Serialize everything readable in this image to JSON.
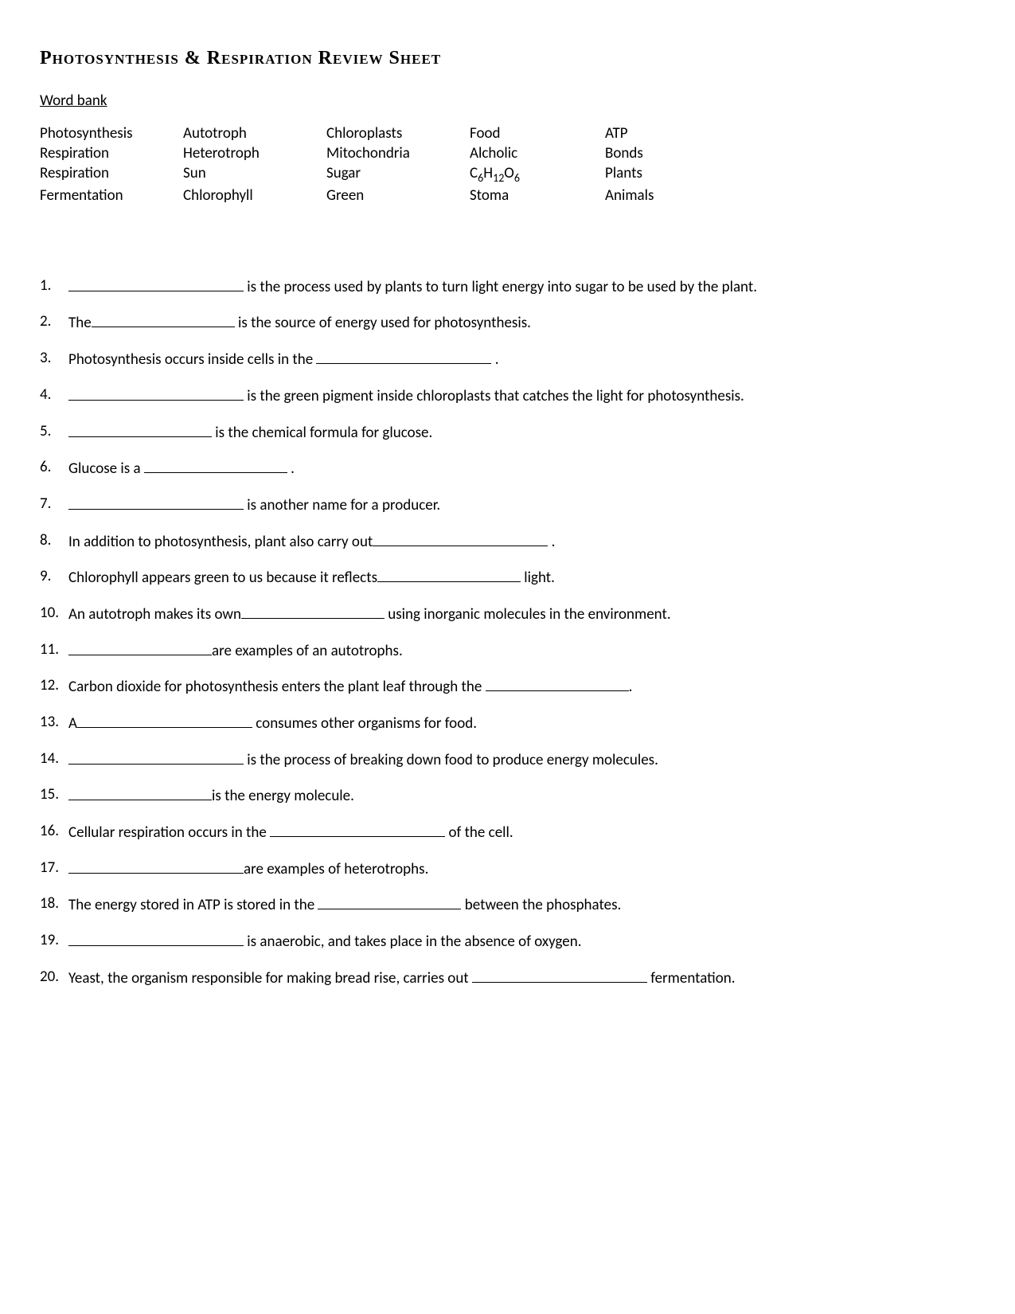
{
  "title": "Photosynthesis & Respiration Review Sheet",
  "word_bank_label": "Word bank",
  "word_bank": {
    "rows": [
      [
        "Photosynthesis",
        "Autotroph",
        "Chloroplasts",
        "Food",
        "ATP"
      ],
      [
        "Respiration",
        "Heterotroph",
        "Mitochondria",
        "Alcholic",
        "Bonds"
      ],
      [
        "Respiration",
        "Sun",
        "Sugar",
        "C6H12O6",
        "Plants"
      ],
      [
        "Fermentation",
        "Chlorophyll",
        "Green",
        "Stoma",
        "Animals"
      ]
    ]
  },
  "questions": [
    {
      "parts": [
        {
          "blank": "long"
        },
        {
          "text": " is the process used by plants to turn light energy into sugar to be used by the plant."
        }
      ]
    },
    {
      "parts": [
        {
          "text": "The"
        },
        {
          "blank": "med"
        },
        {
          "text": " is the source of energy used for photosynthesis."
        }
      ]
    },
    {
      "parts": [
        {
          "text": "Photosynthesis occurs inside cells in the  "
        },
        {
          "blank": "long"
        },
        {
          "text": " ."
        }
      ]
    },
    {
      "parts": [
        {
          "blank": "long"
        },
        {
          "text": " is the green pigment inside chloroplasts that catches the light for photosynthesis."
        }
      ]
    },
    {
      "parts": [
        {
          "blank": "med"
        },
        {
          "text": "  is the chemical formula for glucose."
        }
      ]
    },
    {
      "parts": [
        {
          "text": "Glucose is a "
        },
        {
          "blank": "med"
        },
        {
          "text": " ."
        }
      ]
    },
    {
      "parts": [
        {
          "blank": "long"
        },
        {
          "text": " is another name for a producer."
        }
      ]
    },
    {
      "parts": [
        {
          "text": "In addition to photosynthesis, plant also carry out"
        },
        {
          "blank": "long"
        },
        {
          "text": " ."
        }
      ]
    },
    {
      "parts": [
        {
          "text": "Chlorophyll appears green to us because it reflects"
        },
        {
          "blank": "med"
        },
        {
          "text": " light."
        }
      ]
    },
    {
      "parts": [
        {
          "text": "An autotroph makes its own"
        },
        {
          "blank": "med"
        },
        {
          "text": " using inorganic molecules in the environment."
        }
      ]
    },
    {
      "parts": [
        {
          "blank": "med"
        },
        {
          "text": "are  examples of an autotrophs."
        }
      ]
    },
    {
      "parts": [
        {
          "text": "Carbon dioxide for photosynthesis enters the plant leaf through the "
        },
        {
          "blank": "med"
        },
        {
          "text": "."
        }
      ]
    },
    {
      "parts": [
        {
          "text": "A"
        },
        {
          "blank": "long"
        },
        {
          "text": " consumes other organisms for food."
        }
      ]
    },
    {
      "parts": [
        {
          "blank": "long"
        },
        {
          "text": " is the process of breaking down food to produce energy molecules."
        }
      ]
    },
    {
      "parts": [
        {
          "blank": "med"
        },
        {
          "text": "is the energy molecule."
        }
      ]
    },
    {
      "parts": [
        {
          "text": "Cellular respiration occurs in the "
        },
        {
          "blank": "long"
        },
        {
          "text": " of the cell."
        }
      ]
    },
    {
      "parts": [
        {
          "blank": "long"
        },
        {
          "text": "are examples of heterotrophs."
        }
      ]
    },
    {
      "parts": [
        {
          "text": "The energy stored in ATP is stored in the "
        },
        {
          "blank": "med"
        },
        {
          "text": "  between the phosphates."
        }
      ]
    },
    {
      "parts": [
        {
          "blank": "long"
        },
        {
          "text": "  is anaerobic, and takes place in the absence of oxygen."
        }
      ]
    },
    {
      "parts": [
        {
          "text": "Yeast, the organism responsible for making bread rise, carries out "
        },
        {
          "blank": "long"
        },
        {
          "text": "  fermentation."
        }
      ]
    }
  ]
}
